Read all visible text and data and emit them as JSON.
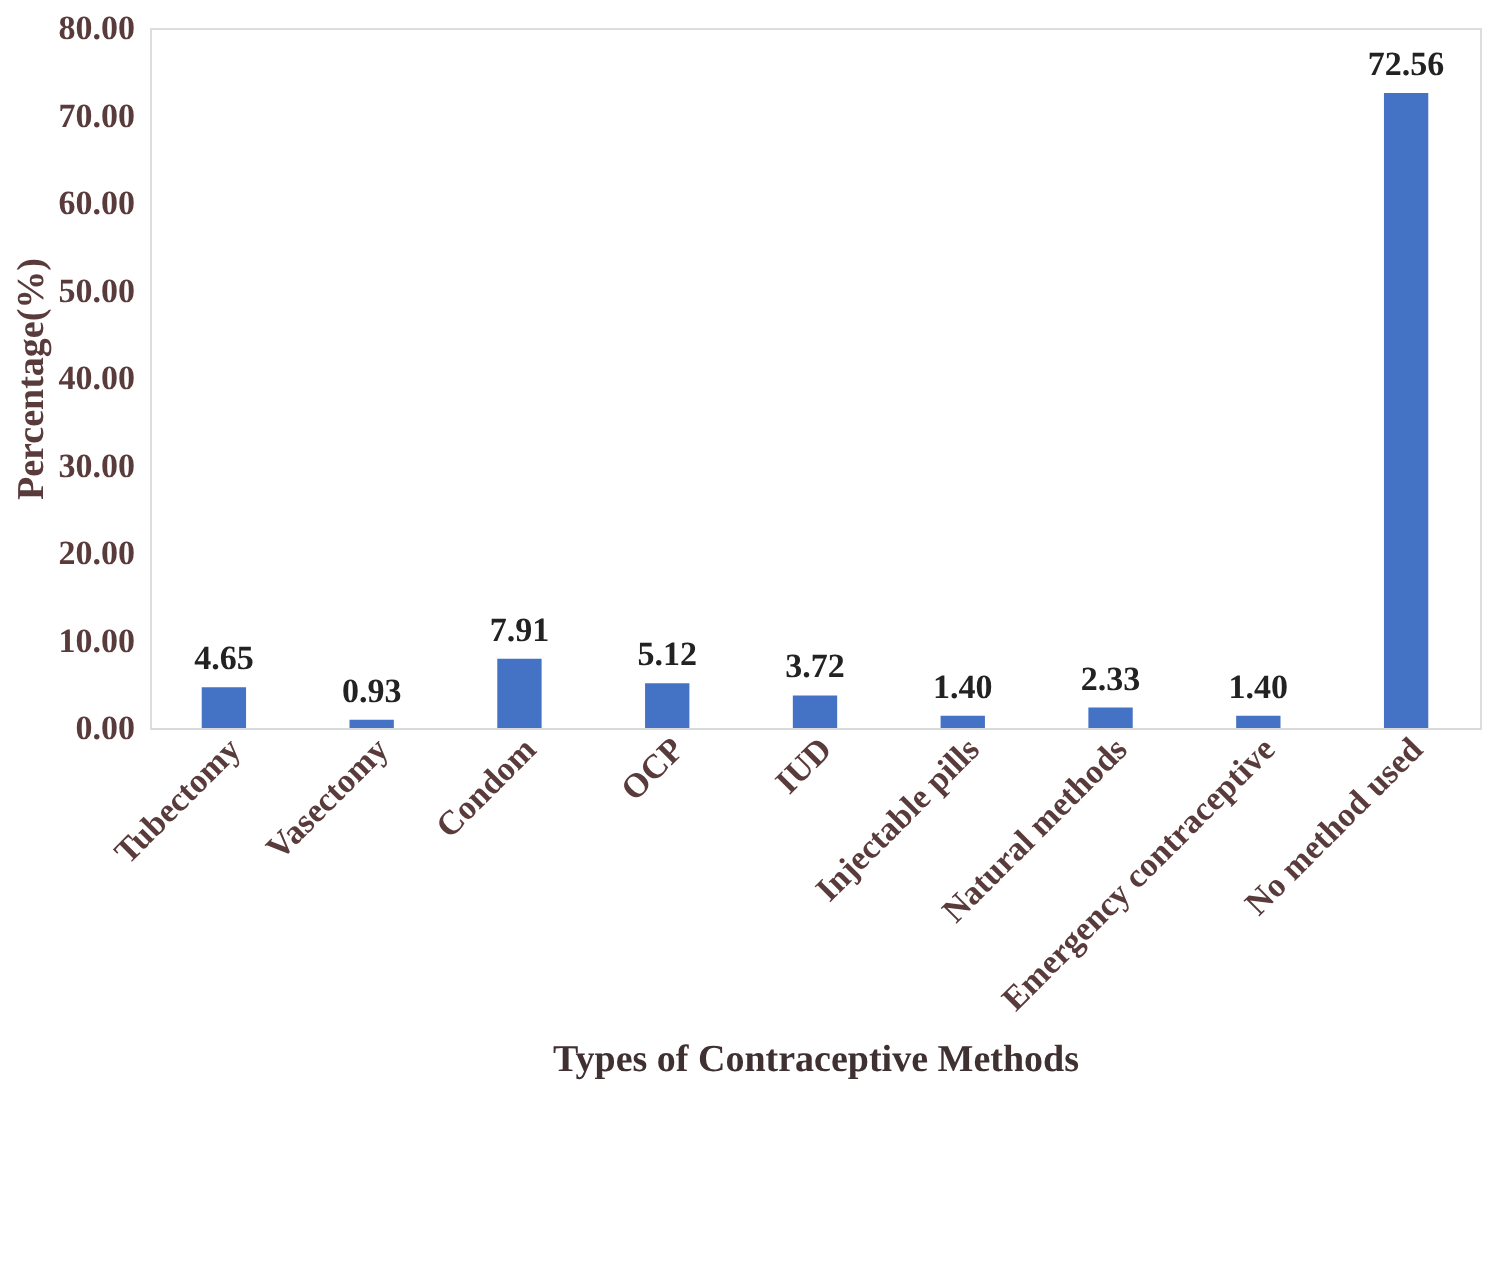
{
  "chart_data": {
    "type": "bar",
    "xlabel": "Types of Contraceptive Methods",
    "ylabel": "Percentage(%)",
    "categories": [
      "Tubectomy",
      "Vasectomy",
      "Condom",
      "OCP",
      "IUD",
      "Injectable pills",
      "Natural methods",
      "Emergency contraceptive",
      "No method used"
    ],
    "values": [
      4.65,
      0.93,
      7.91,
      5.12,
      3.72,
      1.4,
      2.33,
      1.4,
      72.56
    ],
    "value_labels": [
      "4.65",
      "0.93",
      "7.91",
      "5.12",
      "3.72",
      "1.40",
      "2.33",
      "1.40",
      "72.56"
    ],
    "color": "#4472c4",
    "ylim": [
      0,
      80
    ],
    "yticks": [
      {
        "value": 0,
        "label": "0.00"
      },
      {
        "value": 10,
        "label": "10.00"
      },
      {
        "value": 20,
        "label": "20.00"
      },
      {
        "value": 30,
        "label": "30.00"
      },
      {
        "value": 40,
        "label": "40.00"
      },
      {
        "value": 50,
        "label": "50.00"
      },
      {
        "value": 60,
        "label": "60.00"
      },
      {
        "value": 70,
        "label": "70.00"
      },
      {
        "value": 80,
        "label": "80.00"
      }
    ],
    "grid": false
  }
}
